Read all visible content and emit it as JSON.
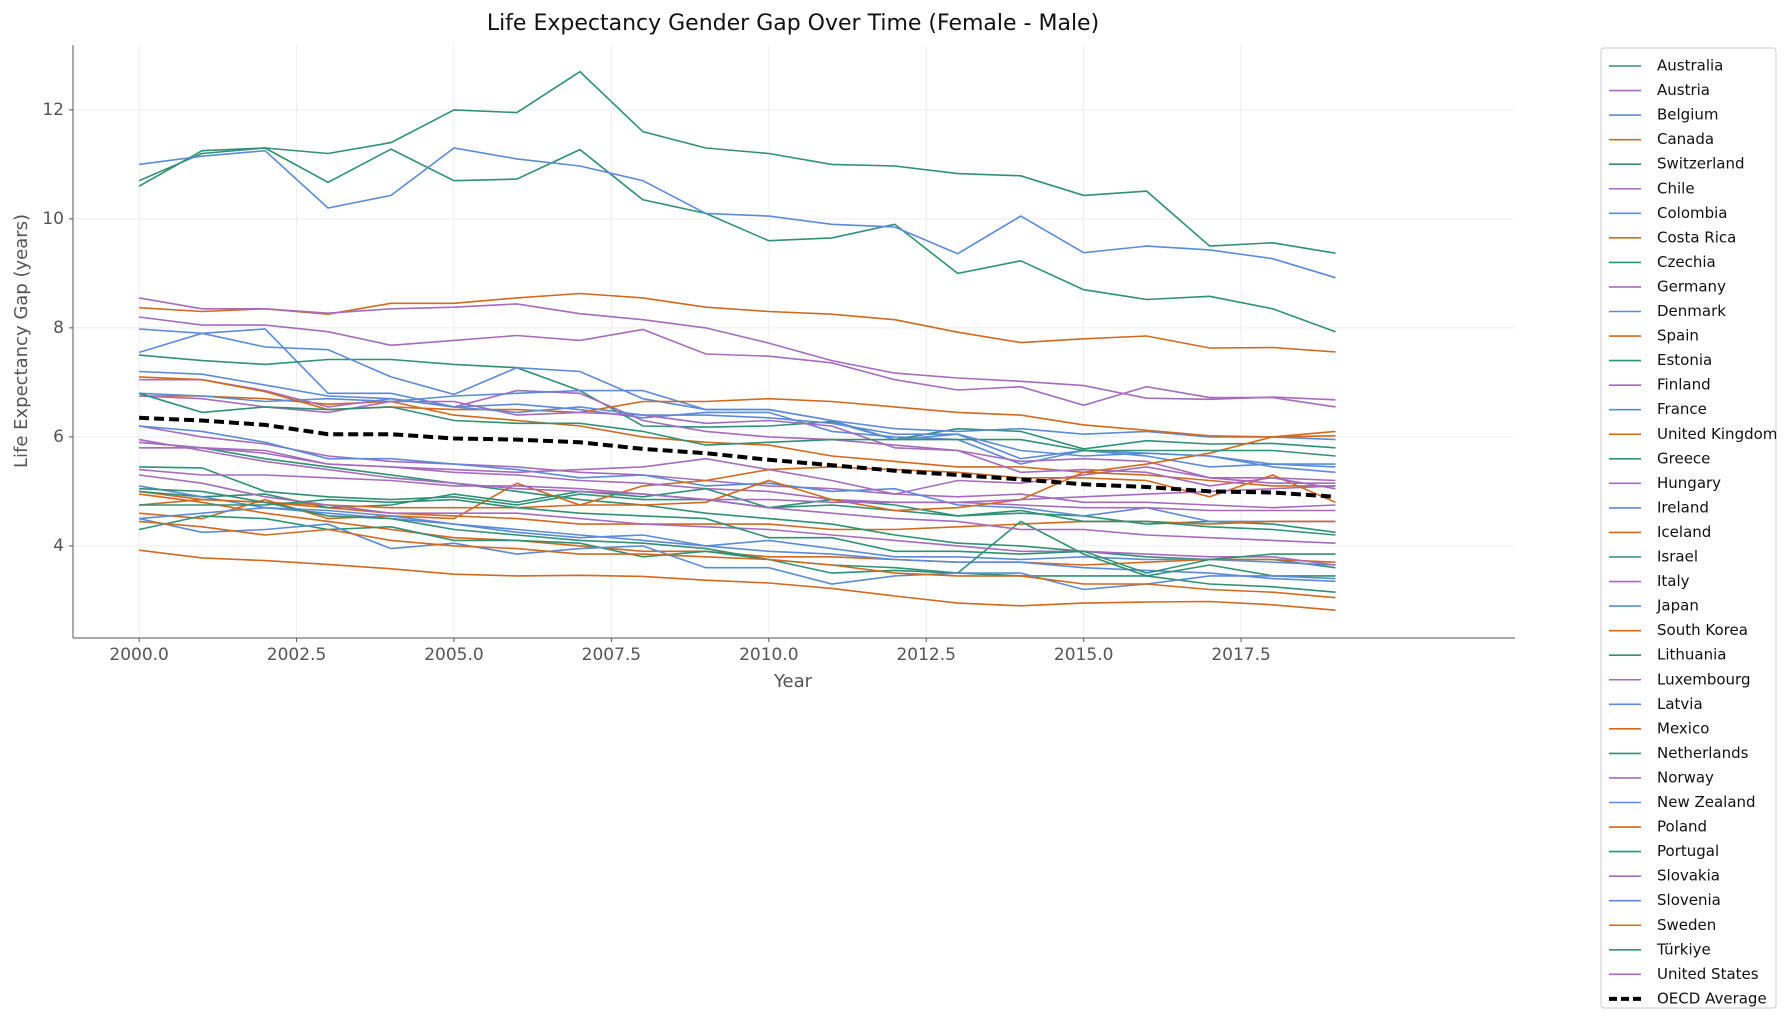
{
  "chart_data": {
    "type": "line",
    "title": "Life Expectancy Gender Gap Over Time (Female - Male)",
    "xlabel": "Year",
    "ylabel": "Life Expectancy Gap (years)",
    "x": [
      2000,
      2001,
      2002,
      2003,
      2004,
      2005,
      2006,
      2007,
      2008,
      2009,
      2010,
      2011,
      2012,
      2013,
      2014,
      2015,
      2016,
      2017,
      2018,
      2019
    ],
    "xlim": [
      1998.95,
      2021.85
    ],
    "xticks": [
      {
        "value": 2000,
        "label": "2000.0"
      },
      2002.5,
      {
        "value": 2005,
        "label": "2005.0"
      },
      2007.5,
      {
        "value": 2010,
        "label": "2010.0"
      },
      2012.5,
      {
        "value": 2015,
        "label": "2015.0"
      },
      2017.5
    ],
    "ylim": [
      2.31,
      13.19
    ],
    "yticks": [
      4,
      6,
      8,
      10,
      12
    ],
    "grid": true,
    "legend": "outside right",
    "series": [
      {
        "name": "Australia",
        "color": "#2e9175",
        "values": [
          5.45,
          5.43,
          5.0,
          4.9,
          4.85,
          4.9,
          4.75,
          4.95,
          4.85,
          4.85,
          4.7,
          4.85,
          4.75,
          4.55,
          4.6,
          4.55,
          4.4,
          4.45,
          4.4,
          4.25
        ]
      },
      {
        "name": "Austria",
        "color": "#a66bbd",
        "values": [
          6.2,
          6.0,
          5.87,
          5.65,
          5.55,
          5.5,
          5.45,
          5.35,
          5.3,
          5.2,
          5.1,
          5.05,
          4.95,
          4.9,
          4.95,
          4.8,
          4.8,
          4.75,
          4.7,
          4.75
        ]
      },
      {
        "name": "Belgium",
        "color": "#5b8bd8",
        "values": [
          6.2,
          6.1,
          5.9,
          5.6,
          5.6,
          5.5,
          5.4,
          5.25,
          5.3,
          5.1,
          5.15,
          5.0,
          5.05,
          4.75,
          4.7,
          4.55,
          4.7,
          4.45,
          4.45,
          4.45
        ]
      },
      {
        "name": "Canada",
        "color": "#d2691e",
        "values": [
          5.0,
          4.85,
          4.8,
          4.7,
          4.6,
          4.55,
          4.5,
          4.4,
          4.4,
          4.4,
          4.4,
          4.3,
          4.3,
          4.35,
          4.4,
          4.45,
          4.45,
          4.4,
          4.45,
          4.45
        ]
      },
      {
        "name": "Switzerland",
        "color": "#2e9175",
        "values": [
          5.9,
          5.8,
          5.6,
          5.45,
          5.3,
          5.15,
          5.0,
          4.85,
          4.75,
          4.6,
          4.5,
          4.4,
          4.2,
          4.05,
          4.0,
          3.9,
          3.8,
          3.75,
          3.75,
          3.6
        ]
      },
      {
        "name": "Chile",
        "color": "#a66bbd",
        "values": [
          5.9,
          5.8,
          5.75,
          5.5,
          5.45,
          5.4,
          5.35,
          5.4,
          5.45,
          5.6,
          5.4,
          5.2,
          4.95,
          5.2,
          5.15,
          5.3,
          5.45,
          5.25,
          5.25,
          5.2
        ]
      },
      {
        "name": "Colombia",
        "color": "#5b8bd8",
        "values": [
          7.98,
          7.9,
          7.98,
          6.8,
          6.8,
          6.55,
          6.6,
          6.5,
          6.35,
          6.45,
          6.45,
          6.1,
          6.0,
          5.95,
          5.5,
          5.75,
          5.65,
          5.45,
          5.5,
          5.45
        ]
      },
      {
        "name": "Costa Rica",
        "color": "#d2691e",
        "values": [
          4.6,
          4.5,
          4.85,
          4.5,
          4.55,
          4.5,
          5.15,
          4.75,
          5.1,
          5.2,
          5.4,
          5.45,
          5.4,
          5.35,
          5.25,
          5.25,
          5.2,
          4.9,
          5.3,
          4.8
        ]
      },
      {
        "name": "Czechia",
        "color": "#2e9175",
        "values": [
          7.5,
          7.4,
          7.33,
          7.42,
          7.42,
          7.33,
          7.27,
          6.85,
          6.2,
          6.18,
          6.2,
          6.28,
          5.95,
          6.15,
          6.1,
          5.78,
          5.93,
          5.87,
          5.88,
          5.8
        ]
      },
      {
        "name": "Germany",
        "color": "#a66bbd",
        "values": [
          5.8,
          5.8,
          5.7,
          5.5,
          5.45,
          5.35,
          5.3,
          5.2,
          5.15,
          5.05,
          5.0,
          4.85,
          4.8,
          4.8,
          4.75,
          4.7,
          4.7,
          4.65,
          4.65,
          4.65
        ]
      },
      {
        "name": "Denmark",
        "color": "#5b8bd8",
        "values": [
          4.5,
          4.6,
          4.7,
          4.65,
          4.55,
          4.4,
          4.25,
          4.15,
          4.2,
          4.0,
          4.1,
          3.95,
          3.8,
          3.8,
          3.75,
          3.8,
          3.75,
          3.75,
          3.7,
          3.65
        ]
      },
      {
        "name": "Spain",
        "color": "#d2691e",
        "values": [
          6.75,
          6.75,
          6.7,
          6.6,
          6.65,
          6.4,
          6.3,
          6.2,
          6.0,
          5.9,
          5.85,
          5.65,
          5.55,
          5.45,
          5.45,
          5.35,
          5.3,
          5.2,
          5.1,
          5.1
        ]
      },
      {
        "name": "Estonia",
        "color": "#2e9175",
        "values": [
          10.7,
          11.2,
          11.3,
          10.67,
          11.28,
          10.7,
          10.73,
          11.27,
          10.35,
          10.1,
          9.6,
          9.65,
          9.9,
          9.0,
          9.23,
          8.7,
          8.52,
          8.58,
          8.35,
          7.93
        ]
      },
      {
        "name": "Finland",
        "color": "#a66bbd",
        "values": [
          7.05,
          7.05,
          6.85,
          6.55,
          6.7,
          6.55,
          6.85,
          6.8,
          6.3,
          6.1,
          6.0,
          5.95,
          5.85,
          5.75,
          5.55,
          5.6,
          5.55,
          5.25,
          5.15,
          5.15
        ]
      },
      {
        "name": "France",
        "color": "#5b8bd8",
        "values": [
          7.55,
          7.9,
          7.65,
          7.6,
          7.1,
          6.78,
          7.27,
          7.2,
          6.7,
          6.5,
          6.5,
          6.3,
          5.95,
          6.05,
          5.6,
          5.75,
          5.7,
          5.65,
          5.5,
          5.5
        ]
      },
      {
        "name": "United Kingdom",
        "color": "#d2691e",
        "values": [
          4.95,
          4.8,
          4.6,
          4.45,
          4.3,
          4.15,
          4.1,
          4.0,
          3.9,
          3.9,
          3.8,
          3.8,
          3.75,
          3.7,
          3.7,
          3.65,
          3.7,
          3.75,
          3.75,
          3.7
        ]
      },
      {
        "name": "Greece",
        "color": "#2e9175",
        "values": [
          5.0,
          4.9,
          4.95,
          4.7,
          4.75,
          4.95,
          4.8,
          5.0,
          4.9,
          5.05,
          4.7,
          4.75,
          4.65,
          4.55,
          4.65,
          4.45,
          4.45,
          4.35,
          4.3,
          4.2
        ]
      },
      {
        "name": "Hungary",
        "color": "#a66bbd",
        "values": [
          8.2,
          8.05,
          8.05,
          7.93,
          7.68,
          7.77,
          7.86,
          7.77,
          7.97,
          7.52,
          7.48,
          7.36,
          7.05,
          6.86,
          6.92,
          6.58,
          6.92,
          6.72,
          6.72,
          6.55
        ]
      },
      {
        "name": "Ireland",
        "color": "#5b8bd8",
        "values": [
          5.1,
          4.9,
          4.7,
          4.6,
          4.5,
          4.4,
          4.3,
          4.2,
          4.1,
          4.0,
          3.9,
          3.85,
          3.75,
          3.7,
          3.7,
          3.6,
          3.55,
          3.5,
          3.4,
          3.35
        ]
      },
      {
        "name": "Iceland",
        "color": "#d2691e",
        "values": [
          3.92,
          3.78,
          3.73,
          3.66,
          3.58,
          3.48,
          3.45,
          3.46,
          3.44,
          3.37,
          3.32,
          3.22,
          3.08,
          2.95,
          2.9,
          2.95,
          2.97,
          2.98,
          2.92,
          2.82
        ]
      },
      {
        "name": "Israel",
        "color": "#2e9175",
        "values": [
          4.3,
          4.55,
          4.5,
          4.3,
          4.35,
          4.1,
          4.1,
          4.05,
          3.8,
          3.9,
          3.75,
          3.5,
          3.55,
          3.5,
          4.45,
          3.85,
          3.45,
          3.65,
          3.45,
          3.45
        ]
      },
      {
        "name": "Italy",
        "color": "#a66bbd",
        "values": [
          5.95,
          5.75,
          5.55,
          5.4,
          5.25,
          5.15,
          5.05,
          5.0,
          4.95,
          4.85,
          4.7,
          4.6,
          4.5,
          4.45,
          4.3,
          4.3,
          4.2,
          4.15,
          4.1,
          4.05
        ]
      },
      {
        "name": "Japan",
        "color": "#5b8bd8",
        "values": [
          6.8,
          6.75,
          6.65,
          6.7,
          6.65,
          6.75,
          6.8,
          6.85,
          6.85,
          6.5,
          6.5,
          6.3,
          6.15,
          6.1,
          6.15,
          6.05,
          6.1,
          6.0,
          6.0,
          5.95
        ]
      },
      {
        "name": "South Korea",
        "color": "#d2691e",
        "values": [
          7.1,
          7.05,
          6.83,
          6.5,
          6.55,
          6.5,
          6.5,
          6.45,
          6.65,
          6.65,
          6.7,
          6.65,
          6.55,
          6.45,
          6.4,
          6.22,
          6.12,
          6.02,
          6.0,
          6.02
        ]
      },
      {
        "name": "Lithuania",
        "color": "#2e9175",
        "values": [
          10.6,
          11.25,
          11.3,
          11.2,
          11.4,
          12.0,
          11.95,
          12.7,
          11.6,
          11.3,
          11.2,
          11.0,
          10.97,
          10.83,
          10.79,
          10.43,
          10.51,
          9.5,
          9.56,
          9.37
        ]
      },
      {
        "name": "Luxembourg",
        "color": "#a66bbd",
        "values": [
          6.75,
          6.7,
          6.55,
          6.45,
          6.65,
          6.65,
          6.4,
          6.45,
          6.4,
          6.25,
          6.3,
          6.2,
          5.8,
          5.75,
          5.35,
          5.4,
          5.35,
          5.1,
          5.25,
          5.05
        ]
      },
      {
        "name": "Latvia",
        "color": "#5b8bd8",
        "values": [
          11.0,
          11.15,
          11.25,
          10.2,
          10.43,
          11.3,
          11.1,
          10.97,
          10.7,
          10.1,
          10.05,
          9.9,
          9.85,
          9.36,
          10.05,
          9.38,
          9.5,
          9.43,
          9.27,
          8.92
        ]
      },
      {
        "name": "Mexico",
        "color": "#d2691e",
        "values": [
          4.75,
          4.85,
          4.8,
          4.75,
          4.7,
          4.7,
          4.7,
          4.75,
          4.75,
          4.8,
          5.2,
          4.85,
          4.65,
          4.7,
          4.85,
          5.35,
          5.5,
          5.7,
          6.0,
          6.1
        ]
      },
      {
        "name": "Netherlands",
        "color": "#2e9175",
        "values": [
          5.05,
          5.0,
          4.8,
          4.55,
          4.5,
          4.3,
          4.2,
          4.1,
          4.05,
          3.95,
          3.75,
          3.65,
          3.6,
          3.5,
          3.45,
          3.45,
          3.45,
          3.3,
          3.25,
          3.15
        ]
      },
      {
        "name": "Norway",
        "color": "#a66bbd",
        "values": [
          5.3,
          5.15,
          4.9,
          4.75,
          4.6,
          4.6,
          4.6,
          4.5,
          4.4,
          4.35,
          4.3,
          4.2,
          4.1,
          4.0,
          3.9,
          3.9,
          3.85,
          3.8,
          3.8,
          3.65
        ]
      },
      {
        "name": "New Zealand",
        "color": "#5b8bd8",
        "values": [
          4.5,
          4.25,
          4.3,
          4.4,
          3.95,
          4.05,
          3.85,
          3.95,
          4.0,
          3.6,
          3.6,
          3.3,
          3.45,
          3.5,
          3.5,
          3.2,
          3.3,
          3.45,
          3.45,
          3.4
        ]
      },
      {
        "name": "Poland",
        "color": "#d2691e",
        "values": [
          8.37,
          8.3,
          8.35,
          8.25,
          8.45,
          8.45,
          8.55,
          8.63,
          8.55,
          8.38,
          8.3,
          8.25,
          8.15,
          7.92,
          7.73,
          7.8,
          7.85,
          7.63,
          7.64,
          7.56
        ]
      },
      {
        "name": "Portugal",
        "color": "#2e9175",
        "values": [
          6.8,
          6.45,
          6.55,
          6.5,
          6.55,
          6.3,
          6.25,
          6.25,
          6.1,
          5.85,
          5.9,
          5.95,
          5.95,
          5.95,
          5.95,
          5.75,
          5.75,
          5.75,
          5.75,
          5.65
        ]
      },
      {
        "name": "Slovakia",
        "color": "#a66bbd",
        "values": [
          8.55,
          8.35,
          8.35,
          8.27,
          8.35,
          8.38,
          8.44,
          8.26,
          8.15,
          8.0,
          7.72,
          7.4,
          7.17,
          7.08,
          7.02,
          6.94,
          6.71,
          6.69,
          6.73,
          6.68
        ]
      },
      {
        "name": "Slovenia",
        "color": "#5b8bd8",
        "values": [
          7.2,
          7.15,
          6.95,
          6.75,
          6.7,
          6.55,
          6.45,
          6.55,
          6.4,
          6.4,
          6.35,
          6.25,
          6.05,
          6.05,
          5.75,
          5.65,
          5.7,
          5.65,
          5.45,
          5.35
        ]
      },
      {
        "name": "Sweden",
        "color": "#d2691e",
        "values": [
          4.45,
          4.35,
          4.2,
          4.3,
          4.1,
          4.0,
          3.95,
          3.85,
          3.85,
          3.8,
          3.75,
          3.65,
          3.5,
          3.45,
          3.45,
          3.3,
          3.3,
          3.2,
          3.15,
          3.05
        ]
      },
      {
        "name": "Türkiye",
        "color": "#2e9175",
        "values": [
          4.75,
          4.75,
          4.75,
          4.85,
          4.8,
          4.85,
          4.7,
          4.6,
          4.55,
          4.5,
          4.15,
          4.15,
          3.9,
          3.9,
          3.85,
          3.9,
          3.5,
          3.75,
          3.85,
          3.85
        ]
      },
      {
        "name": "United States",
        "color": "#a66bbd",
        "values": [
          5.4,
          5.3,
          5.3,
          5.25,
          5.2,
          5.1,
          5.1,
          5.05,
          4.95,
          4.85,
          4.85,
          4.8,
          4.8,
          4.8,
          4.85,
          4.9,
          4.95,
          5.0,
          5.05,
          5.1
        ]
      },
      {
        "name": "OECD Average",
        "color": "#000000",
        "dashed": true,
        "values": [
          6.35,
          6.3,
          6.22,
          6.05,
          6.05,
          5.97,
          5.95,
          5.9,
          5.78,
          5.7,
          5.58,
          5.48,
          5.38,
          5.3,
          5.22,
          5.13,
          5.08,
          5.0,
          4.98,
          4.9
        ]
      }
    ]
  }
}
